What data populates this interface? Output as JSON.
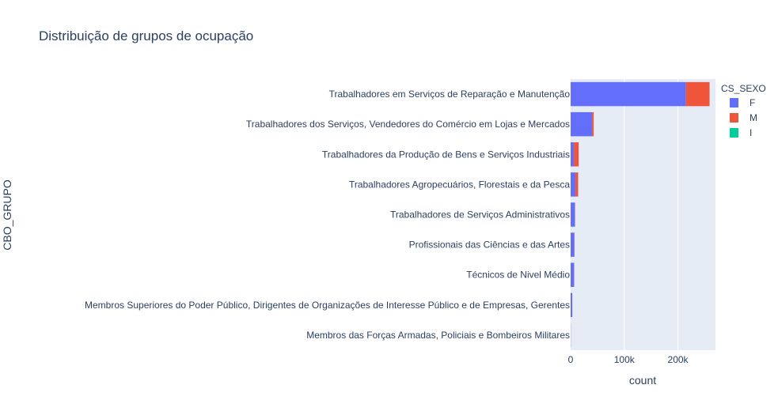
{
  "chart_data": {
    "type": "bar",
    "orientation": "horizontal",
    "barmode": "stack",
    "title": "Distribuição de grupos de ocupação",
    "xlabel": "count",
    "ylabel": "CBO_GRUPO",
    "xlim": [
      0,
      270000
    ],
    "xticks": [
      0,
      100000,
      200000
    ],
    "xtick_labels": [
      "0",
      "100k",
      "200k"
    ],
    "grid": true,
    "legend": {
      "title": "CS_SEXO",
      "placement": "right"
    },
    "categories": [
      "Trabalhadores em Serviços de Reparação e Manutenção",
      "Trabalhadores dos Serviços, Vendedores do Comércio em Lojas e Mercados",
      "Trabalhadores da Produção de Bens e Serviços Industriais",
      "Trabalhadores Agropecuários, Florestais e da Pesca",
      "Trabalhadores de Serviços Administrativos",
      "Profissionais das Ciências e das Artes",
      "Técnicos de Nivel Médio",
      "Membros Superiores do Poder Público, Dirigentes de Organizações de Interesse Público e de Empresas, Gerentes",
      "Membros das Forças Armadas, Policiais e Bombeiros Militares"
    ],
    "series": [
      {
        "name": "F",
        "color": "#636efa",
        "values": [
          215000,
          40000,
          6000,
          9000,
          8000,
          7000,
          6500,
          3000,
          300
        ]
      },
      {
        "name": "M",
        "color": "#ef553b",
        "values": [
          44000,
          3000,
          9000,
          5000,
          300,
          200,
          200,
          100,
          50
        ]
      },
      {
        "name": "I",
        "color": "#00cc96",
        "values": [
          0,
          0,
          0,
          0,
          0,
          0,
          0,
          0,
          0
        ]
      }
    ]
  }
}
